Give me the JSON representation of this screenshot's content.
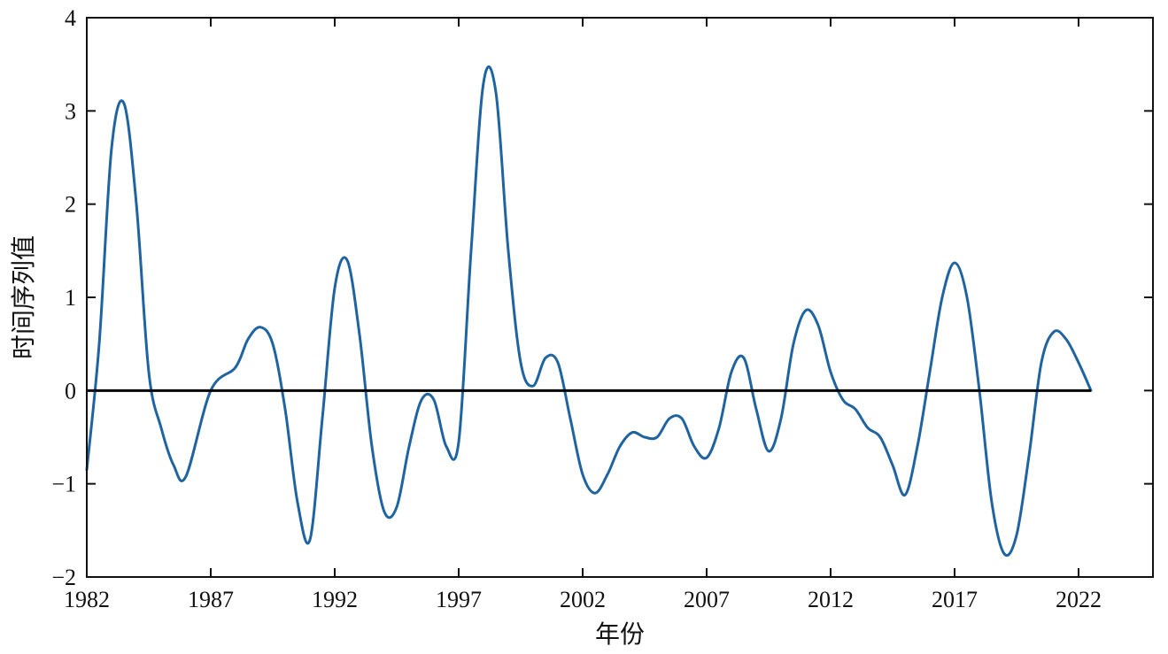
{
  "chart_data": {
    "type": "line",
    "title": "",
    "xlabel": "年份",
    "ylabel": "时间序列值",
    "xlim": [
      1982,
      2025
    ],
    "ylim": [
      -2,
      4
    ],
    "x_ticks": [
      1982,
      1987,
      1992,
      1997,
      2002,
      2007,
      2012,
      2017,
      2022
    ],
    "y_ticks": [
      -2,
      -1,
      0,
      1,
      2,
      3,
      4
    ],
    "y_tick_labels": [
      "−2",
      "−1",
      "0",
      "1",
      "2",
      "3",
      "4"
    ],
    "grid": false,
    "colors": {
      "series": "#1f64a0",
      "reference": "#000000",
      "axes": "#111111"
    },
    "series": [
      {
        "x": [
          1982.0,
          1982.5,
          1983.0,
          1983.5,
          1984.0,
          1984.5,
          1985.0,
          1985.5,
          1986.0,
          1987.0,
          1988.0,
          1988.5,
          1989.0,
          1989.5,
          1990.0,
          1990.5,
          1991.0,
          1991.5,
          1992.0,
          1992.5,
          1993.0,
          1993.5,
          1994.0,
          1994.5,
          1995.0,
          1995.5,
          1996.0,
          1996.5,
          1997.0,
          1997.5,
          1998.0,
          1998.5,
          1999.0,
          1999.5,
          2000.0,
          2000.5,
          2001.0,
          2001.5,
          2002.0,
          2002.5,
          2003.0,
          2003.5,
          2004.0,
          2004.5,
          2005.0,
          2005.5,
          2006.0,
          2006.5,
          2007.0,
          2007.5,
          2008.0,
          2008.5,
          2009.0,
          2009.5,
          2010.0,
          2010.5,
          2011.0,
          2011.5,
          2012.0,
          2012.5,
          2013.0,
          2013.5,
          2014.0,
          2014.5,
          2015.0,
          2015.5,
          2016.0,
          2016.5,
          2017.0,
          2017.5,
          2018.0,
          2018.5,
          2019.0,
          2019.5,
          2020.0,
          2020.5,
          2021.0,
          2021.5,
          2022.0,
          2022.5
        ],
        "y": [
          -0.85,
          0.5,
          2.6,
          3.08,
          2.0,
          0.2,
          -0.4,
          -0.8,
          -0.92,
          0.0,
          0.25,
          0.55,
          0.68,
          0.5,
          -0.2,
          -1.2,
          -1.6,
          -0.3,
          1.1,
          1.4,
          0.6,
          -0.6,
          -1.3,
          -1.25,
          -0.6,
          -0.1,
          -0.1,
          -0.6,
          -0.55,
          1.5,
          3.3,
          3.2,
          1.5,
          0.3,
          0.05,
          0.35,
          0.3,
          -0.3,
          -0.9,
          -1.1,
          -0.9,
          -0.6,
          -0.45,
          -0.5,
          -0.5,
          -0.3,
          -0.3,
          -0.6,
          -0.72,
          -0.4,
          0.2,
          0.35,
          -0.2,
          -0.65,
          -0.3,
          0.5,
          0.86,
          0.7,
          0.2,
          -0.1,
          -0.2,
          -0.4,
          -0.5,
          -0.8,
          -1.12,
          -0.6,
          0.2,
          1.0,
          1.37,
          1.0,
          0.0,
          -1.2,
          -1.75,
          -1.55,
          -0.7,
          0.3,
          0.63,
          0.55,
          0.3,
          0.0
        ]
      }
    ],
    "reference_line": {
      "y": 0,
      "x_range": [
        1982,
        2022.5
      ]
    }
  }
}
